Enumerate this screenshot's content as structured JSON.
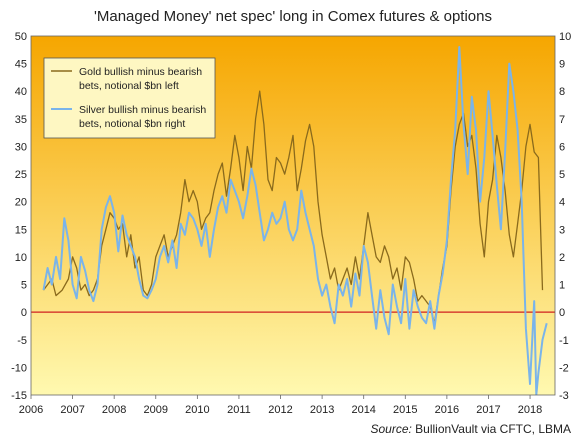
{
  "chart_data": {
    "type": "line",
    "title": "'Managed Money' net spec' long in Comex futures  & options",
    "source_label": "Source:",
    "source_text": " BullionVault via CFTC, LBMA",
    "x_ticks": [
      "2006",
      "2007",
      "2008",
      "2009",
      "2010",
      "2011",
      "2012",
      "2013",
      "2014",
      "2015",
      "2016",
      "2017",
      "2018"
    ],
    "xlim": [
      2006.0,
      2018.6
    ],
    "left_axis": {
      "ticks": [
        "-15",
        "-10",
        "-5",
        "0",
        "5",
        "10",
        "15",
        "20",
        "25",
        "30",
        "35",
        "40",
        "45",
        "50"
      ],
      "ylim": [
        -15,
        50
      ]
    },
    "right_axis": {
      "ticks": [
        "-3",
        "-2",
        "-1",
        "0",
        "1",
        "2",
        "3",
        "4",
        "5",
        "6",
        "7",
        "8",
        "9",
        "10"
      ],
      "ylim": [
        -3,
        10
      ]
    },
    "legend": {
      "position": "top-left",
      "entries": [
        {
          "line1": "Gold bullish minus bearish",
          "line2": "bets, notional $bn left"
        },
        {
          "line1": "Silver bullish minus bearish",
          "line2": "bets, notional $bn right"
        }
      ]
    },
    "background_gradient": [
      "#f6a600",
      "#fff9b0"
    ],
    "zero_line_color": "#d02020",
    "series": [
      {
        "name": "Gold bullish minus bearish bets, notional $bn left",
        "axis": "left",
        "color": "#8a6a1c",
        "x": [
          2006.3,
          2006.5,
          2006.6,
          2006.75,
          2006.9,
          2007.0,
          2007.1,
          2007.2,
          2007.3,
          2007.4,
          2007.5,
          2007.6,
          2007.7,
          2007.8,
          2007.9,
          2008.0,
          2008.1,
          2008.2,
          2008.3,
          2008.4,
          2008.5,
          2008.6,
          2008.7,
          2008.8,
          2008.9,
          2009.0,
          2009.1,
          2009.2,
          2009.3,
          2009.4,
          2009.5,
          2009.6,
          2009.7,
          2009.8,
          2009.9,
          2010.0,
          2010.1,
          2010.2,
          2010.3,
          2010.4,
          2010.5,
          2010.6,
          2010.7,
          2010.8,
          2010.9,
          2011.0,
          2011.1,
          2011.2,
          2011.3,
          2011.4,
          2011.5,
          2011.6,
          2011.7,
          2011.8,
          2011.9,
          2012.0,
          2012.1,
          2012.2,
          2012.3,
          2012.4,
          2012.5,
          2012.6,
          2012.7,
          2012.8,
          2012.9,
          2013.0,
          2013.1,
          2013.2,
          2013.3,
          2013.4,
          2013.5,
          2013.6,
          2013.7,
          2013.8,
          2013.9,
          2014.0,
          2014.1,
          2014.2,
          2014.3,
          2014.4,
          2014.5,
          2014.6,
          2014.7,
          2014.8,
          2014.9,
          2015.0,
          2015.1,
          2015.2,
          2015.3,
          2015.4,
          2015.5,
          2015.6,
          2015.7,
          2015.8,
          2015.9,
          2016.0,
          2016.1,
          2016.2,
          2016.3,
          2016.4,
          2016.5,
          2016.6,
          2016.7,
          2016.8,
          2016.9,
          2017.0,
          2017.1,
          2017.2,
          2017.3,
          2017.4,
          2017.5,
          2017.6,
          2017.7,
          2017.8,
          2017.9,
          2018.0,
          2018.1,
          2018.2,
          2018.3
        ],
        "values": [
          4,
          6,
          3,
          4,
          6,
          10,
          8,
          4,
          5,
          3,
          4,
          6,
          12,
          15,
          18,
          17,
          15,
          16,
          10,
          14,
          8,
          10,
          4,
          3,
          5,
          10,
          12,
          14,
          10,
          12,
          14,
          18,
          24,
          20,
          22,
          20,
          15,
          17,
          18,
          22,
          25,
          27,
          21,
          26,
          32,
          28,
          22,
          30,
          26,
          35,
          40,
          34,
          24,
          22,
          28,
          27,
          25,
          28,
          32,
          22,
          26,
          31,
          34,
          30,
          20,
          14,
          10,
          6,
          8,
          4,
          6,
          8,
          5,
          10,
          6,
          12,
          18,
          14,
          10,
          9,
          12,
          10,
          6,
          8,
          4,
          10,
          9,
          6,
          2,
          3,
          2,
          1,
          -2,
          3,
          8,
          12,
          22,
          30,
          34,
          36,
          30,
          32,
          26,
          16,
          10,
          20,
          24,
          32,
          28,
          22,
          14,
          10,
          16,
          22,
          30,
          34,
          29,
          28,
          4
        ]
      },
      {
        "name": "Silver bullish minus bearish bets, notional $bn right",
        "axis": "right",
        "color": "#7ab4ea",
        "x": [
          2006.3,
          2006.4,
          2006.5,
          2006.6,
          2006.7,
          2006.8,
          2006.9,
          2007.0,
          2007.1,
          2007.2,
          2007.3,
          2007.4,
          2007.5,
          2007.6,
          2007.7,
          2007.8,
          2007.9,
          2008.0,
          2008.1,
          2008.2,
          2008.3,
          2008.4,
          2008.5,
          2008.6,
          2008.7,
          2008.8,
          2008.9,
          2009.0,
          2009.1,
          2009.2,
          2009.3,
          2009.4,
          2009.5,
          2009.6,
          2009.7,
          2009.8,
          2009.9,
          2010.0,
          2010.1,
          2010.2,
          2010.3,
          2010.4,
          2010.5,
          2010.6,
          2010.7,
          2010.8,
          2010.9,
          2011.0,
          2011.1,
          2011.2,
          2011.3,
          2011.4,
          2011.5,
          2011.6,
          2011.7,
          2011.8,
          2011.9,
          2012.0,
          2012.1,
          2012.2,
          2012.3,
          2012.4,
          2012.5,
          2012.6,
          2012.7,
          2012.8,
          2012.9,
          2013.0,
          2013.1,
          2013.2,
          2013.3,
          2013.4,
          2013.5,
          2013.6,
          2013.7,
          2013.8,
          2013.9,
          2014.0,
          2014.1,
          2014.2,
          2014.3,
          2014.4,
          2014.5,
          2014.6,
          2014.7,
          2014.8,
          2014.9,
          2015.0,
          2015.1,
          2015.2,
          2015.3,
          2015.4,
          2015.5,
          2015.6,
          2015.7,
          2015.8,
          2015.9,
          2016.0,
          2016.1,
          2016.2,
          2016.3,
          2016.4,
          2016.5,
          2016.6,
          2016.7,
          2016.8,
          2016.9,
          2017.0,
          2017.1,
          2017.2,
          2017.3,
          2017.4,
          2017.5,
          2017.6,
          2017.7,
          2017.8,
          2017.9,
          2018.0,
          2018.1,
          2018.15,
          2018.2,
          2018.3,
          2018.4
        ],
        "values": [
          0.8,
          1.6,
          1.0,
          2.0,
          1.2,
          3.4,
          2.6,
          1.0,
          0.5,
          2.0,
          1.5,
          0.8,
          0.4,
          1.0,
          3.0,
          3.8,
          4.2,
          3.6,
          2.2,
          3.5,
          2.8,
          2.4,
          2.0,
          1.2,
          0.6,
          0.5,
          0.8,
          1.2,
          2.0,
          2.4,
          1.8,
          2.6,
          1.6,
          3.2,
          2.8,
          3.6,
          3.4,
          3.0,
          2.4,
          3.2,
          2.0,
          3.0,
          3.8,
          4.2,
          3.6,
          4.8,
          4.4,
          4.0,
          3.4,
          4.2,
          5.2,
          4.6,
          3.6,
          2.6,
          3.0,
          3.6,
          3.2,
          3.4,
          4.0,
          3.0,
          2.6,
          3.0,
          4.4,
          3.6,
          3.0,
          2.4,
          1.2,
          0.6,
          1.0,
          0.2,
          -0.4,
          1.0,
          0.6,
          1.2,
          0.2,
          1.4,
          0.6,
          2.4,
          1.8,
          0.6,
          -0.6,
          0.8,
          -0.2,
          -0.8,
          1.0,
          0.2,
          -0.4,
          1.2,
          -0.6,
          0.8,
          0.2,
          -0.2,
          -0.4,
          0.4,
          -0.6,
          0.6,
          1.4,
          2.6,
          4.8,
          6.6,
          9.6,
          6.8,
          5.0,
          7.8,
          6.6,
          4.0,
          5.6,
          8.0,
          6.4,
          4.6,
          3.0,
          5.8,
          9.0,
          8.0,
          6.6,
          4.0,
          -0.6,
          -2.6,
          0.4,
          -3.0,
          -2.2,
          -1.0,
          -0.4
        ]
      }
    ]
  }
}
